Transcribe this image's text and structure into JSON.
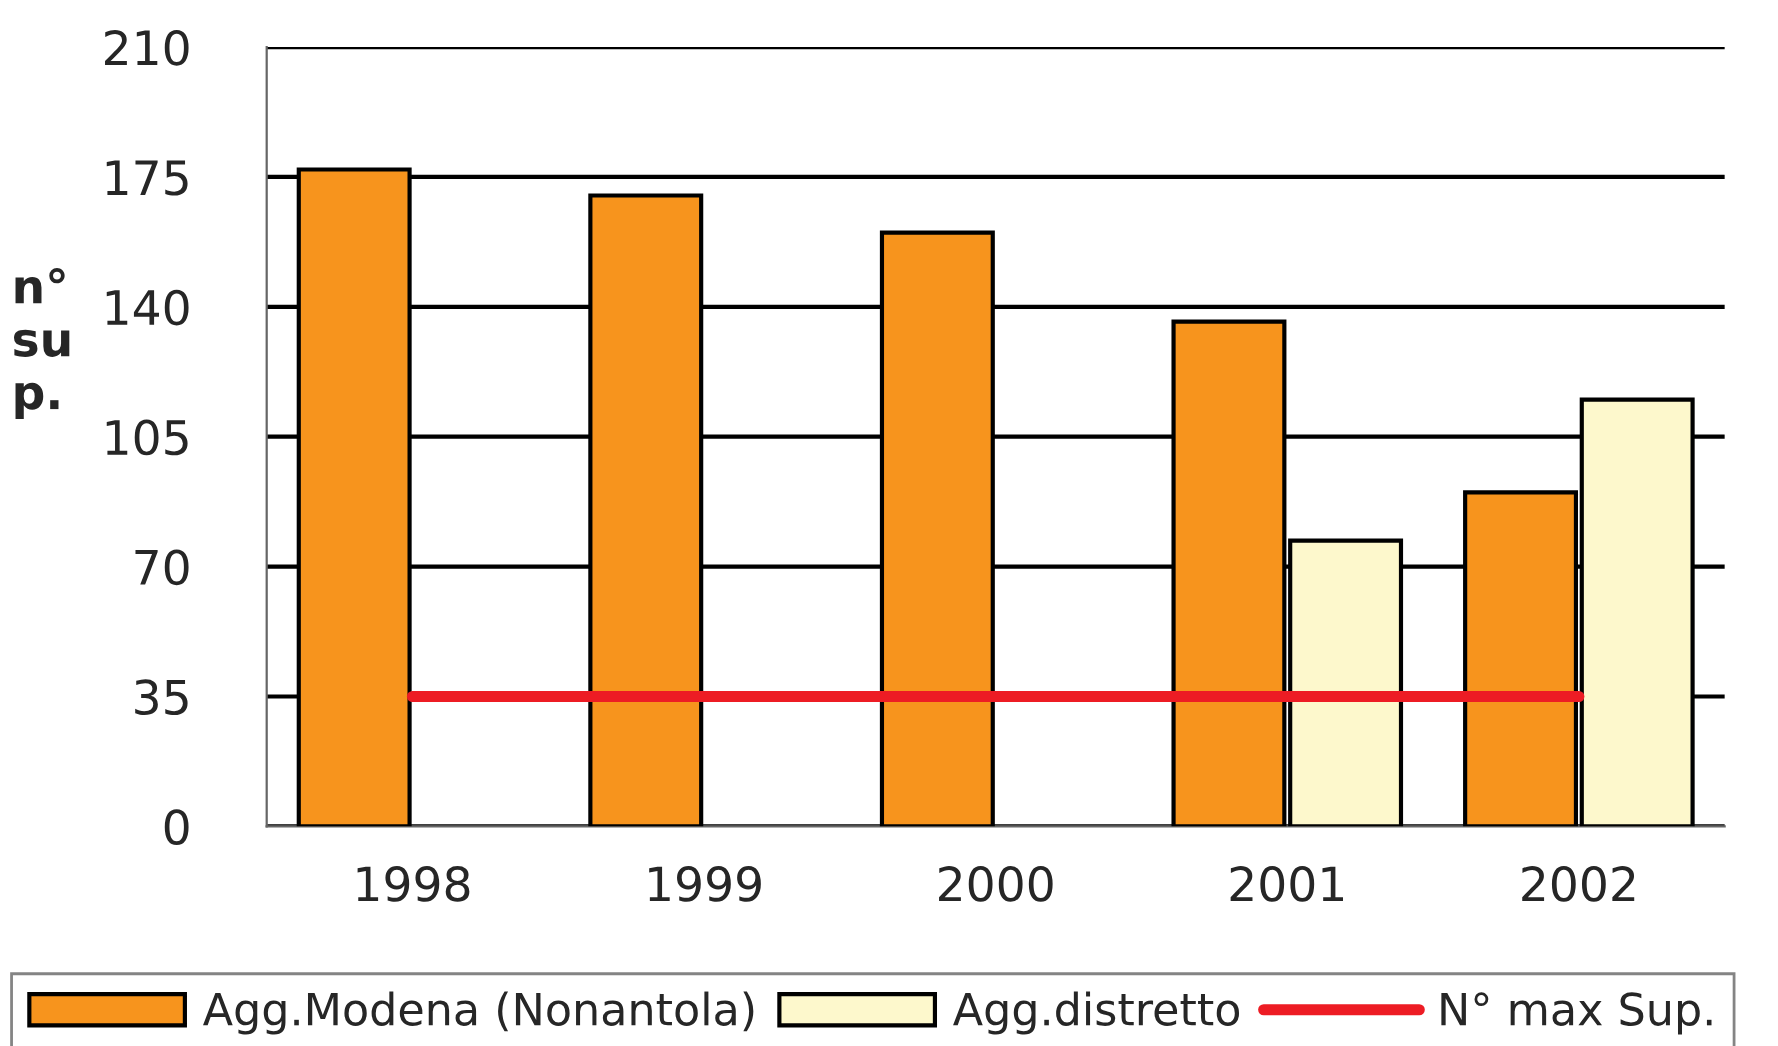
{
  "chart_data": {
    "type": "bar",
    "ylabel": "n°\nsu\np.",
    "categories": [
      "1998",
      "1999",
      "2000",
      "2001",
      "2002"
    ],
    "series": [
      {
        "name": "Agg.Modena (Nonantola)",
        "color": "#f7941d",
        "values": [
          177,
          170,
          160,
          136,
          90
        ]
      },
      {
        "name": "Agg.distretto",
        "color": "#fdf8cc",
        "values": [
          null,
          null,
          null,
          77,
          115
        ]
      },
      {
        "name": "N° max Sup.",
        "type": "line",
        "color": "#ed1c24",
        "values": [
          35,
          35,
          35,
          35,
          35
        ]
      }
    ],
    "ylim": [
      0,
      210
    ],
    "yticks": [
      0,
      35,
      70,
      105,
      140,
      175,
      210
    ],
    "grid": "y",
    "legend": "bottom"
  }
}
